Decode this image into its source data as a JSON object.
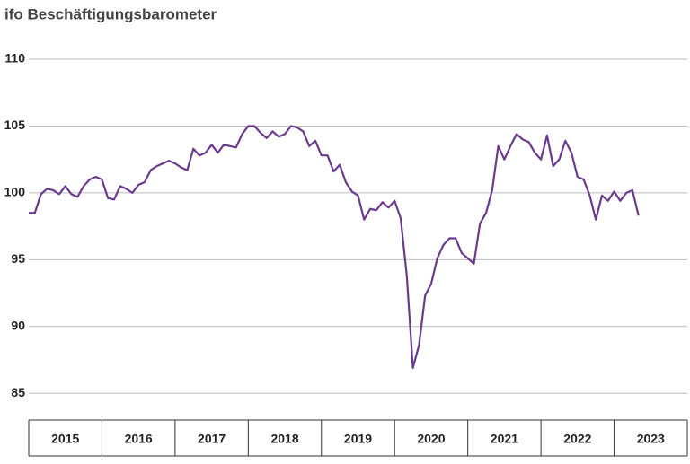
{
  "chart_data": {
    "type": "line",
    "title": "ifo Beschäftigungsbarometer",
    "x": [
      "2015",
      null,
      null,
      null,
      null,
      null,
      null,
      null,
      null,
      null,
      null,
      null,
      "2016",
      null,
      null,
      null,
      null,
      null,
      null,
      null,
      null,
      null,
      null,
      null,
      "2017",
      null,
      null,
      null,
      null,
      null,
      null,
      null,
      null,
      null,
      null,
      null,
      "2018",
      null,
      null,
      null,
      null,
      null,
      null,
      null,
      null,
      null,
      null,
      null,
      "2019",
      null,
      null,
      null,
      null,
      null,
      null,
      null,
      null,
      null,
      null,
      null,
      "2020",
      null,
      null,
      null,
      null,
      null,
      null,
      null,
      null,
      null,
      null,
      null,
      "2021",
      null,
      null,
      null,
      null,
      null,
      null,
      null,
      null,
      null,
      null,
      null,
      "2022",
      null,
      null,
      null,
      null,
      null,
      null,
      null,
      null,
      null,
      null,
      null,
      "2023",
      null,
      null,
      null,
      null
    ],
    "series": [
      {
        "color": "#6b3a8e",
        "values": [
          98.5,
          98.5,
          99.9,
          100.3,
          100.2,
          99.9,
          100.5,
          99.9,
          99.7,
          100.5,
          101.0,
          101.2,
          101.0,
          99.6,
          99.5,
          100.5,
          100.3,
          100.0,
          100.6,
          100.8,
          101.7,
          102.0,
          102.2,
          102.4,
          102.2,
          101.9,
          101.7,
          103.3,
          102.8,
          103.0,
          103.6,
          103.0,
          103.6,
          103.5,
          103.4,
          104.4,
          105.0,
          105.0,
          104.5,
          104.1,
          104.6,
          104.2,
          104.4,
          105.0,
          104.9,
          104.6,
          103.5,
          103.9,
          102.8,
          102.8,
          101.6,
          102.1,
          100.8,
          100.1,
          99.8,
          98.0,
          98.8,
          98.7,
          99.3,
          98.9,
          99.4,
          98.1,
          93.8,
          86.9,
          88.6,
          92.3,
          93.2,
          95.1,
          96.1,
          96.6,
          96.6,
          95.5,
          95.1,
          94.7,
          97.7,
          98.5,
          100.2,
          103.5,
          102.5,
          103.5,
          104.4,
          104.0,
          103.8,
          103.0,
          102.5,
          104.3,
          102.0,
          102.5,
          103.9,
          103.0,
          101.2,
          101.0,
          99.8,
          98.0,
          99.8,
          99.4,
          100.1,
          99.4,
          100.0,
          100.2,
          98.3
        ]
      }
    ],
    "ylim": [
      83,
      110
    ],
    "yticks": [
      85,
      90,
      95,
      100,
      105,
      110
    ],
    "grid": true
  }
}
